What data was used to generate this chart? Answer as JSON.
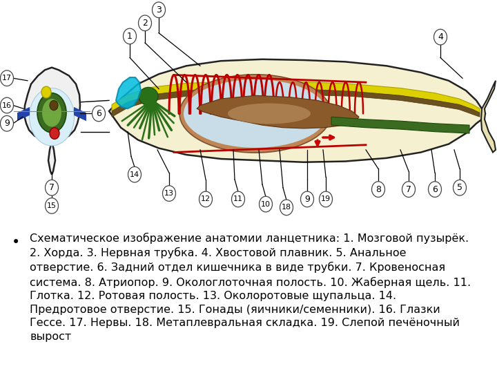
{
  "background_color": "#ffffff",
  "bullet_text": "Схематическое изображение анатомии ланцетника: 1. Мозговой пузырёк.\n2. Хорда. 3. Нервная трубка. 4. Хвостовой плавник. 5. Анальное\nотверстие. 6. Задний отдел кишечника в виде трубки. 7. Кровеносная\nсистема. 8. Атриопор. 9. Окологлоточная полость. 10. Жаберная щель. 11.\nГлотка. 12. Ротовая полость. 13. Околоротовые щупальца. 14.\nПредротовое отверстие. 15. Гонады (яичники/семенники). 16. Глазки\nГессе. 17. Нервы. 18. Метаплевральная складка. 19. Слепой печёночный\nвырост",
  "bullet_fontsize": 11.5,
  "figsize": [
    7.2,
    5.4
  ],
  "dpi": 100,
  "body_color": "#f5f0d0",
  "body_edge": "#222222",
  "notochord_color": "#d4c800",
  "nerve_color": "#7a5020",
  "gill_color": "#aa0000",
  "green_color": "#2d7a1a",
  "cyan_color": "#00aacc",
  "pharynx_color": "#c08060",
  "pharynx_inner": "#c0dce8"
}
